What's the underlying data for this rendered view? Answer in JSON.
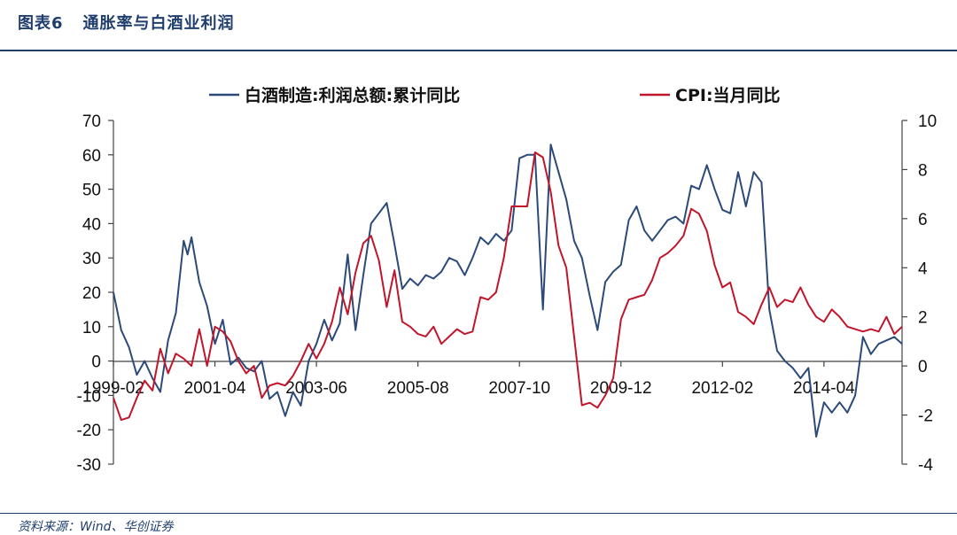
{
  "header": {
    "figure_no": "图表6",
    "title": "通胀率与白酒业利润"
  },
  "source": "资料来源：Wind、华创证券",
  "colors": {
    "accent": "#1f3e6e",
    "series_liquor": "#2b4a7a",
    "series_cpi": "#c0152a"
  },
  "chart_data": {
    "type": "line",
    "x_tick_labels": [
      "1999-02",
      "2001-04",
      "2003-06",
      "2005-08",
      "2007-10",
      "2009-12",
      "2012-02",
      "2014-04"
    ],
    "y_left": {
      "min": -30,
      "max": 70,
      "ticks": [
        -30,
        -20,
        -10,
        0,
        10,
        20,
        30,
        40,
        50,
        60,
        70
      ]
    },
    "y_right": {
      "min": -4,
      "max": 10,
      "ticks": [
        -4,
        -2,
        0,
        2,
        4,
        6,
        8,
        10
      ]
    },
    "legend_position": "top",
    "series": [
      {
        "name": "白酒制造:利润总额:累计同比",
        "axis": "left",
        "points": [
          [
            "1999-02",
            20
          ],
          [
            "1999-04",
            9
          ],
          [
            "1999-06",
            4
          ],
          [
            "1999-08",
            -4
          ],
          [
            "1999-10",
            0
          ],
          [
            "1999-12",
            -5
          ],
          [
            "2000-02",
            -9
          ],
          [
            "2000-04",
            6
          ],
          [
            "2000-06",
            14
          ],
          [
            "2000-08",
            35
          ],
          [
            "2000-09",
            31
          ],
          [
            "2000-10",
            36
          ],
          [
            "2000-12",
            23
          ],
          [
            "2001-02",
            16
          ],
          [
            "2001-04",
            5
          ],
          [
            "2001-06",
            12
          ],
          [
            "2001-08",
            -1
          ],
          [
            "2001-10",
            1
          ],
          [
            "2001-12",
            -2
          ],
          [
            "2002-02",
            -3
          ],
          [
            "2002-04",
            0
          ],
          [
            "2002-06",
            -11
          ],
          [
            "2002-08",
            -9
          ],
          [
            "2002-10",
            -16
          ],
          [
            "2002-12",
            -9
          ],
          [
            "2003-02",
            -13
          ],
          [
            "2003-04",
            0
          ],
          [
            "2003-06",
            5
          ],
          [
            "2003-08",
            12
          ],
          [
            "2003-10",
            6
          ],
          [
            "2003-12",
            11
          ],
          [
            "2004-02",
            31
          ],
          [
            "2004-04",
            9
          ],
          [
            "2004-06",
            25
          ],
          [
            "2004-08",
            40
          ],
          [
            "2004-10",
            43
          ],
          [
            "2004-12",
            46
          ],
          [
            "2005-02",
            34
          ],
          [
            "2005-04",
            21
          ],
          [
            "2005-06",
            24
          ],
          [
            "2005-08",
            22
          ],
          [
            "2005-10",
            25
          ],
          [
            "2005-12",
            24
          ],
          [
            "2006-02",
            26
          ],
          [
            "2006-04",
            30
          ],
          [
            "2006-06",
            29
          ],
          [
            "2006-08",
            25
          ],
          [
            "2006-10",
            30
          ],
          [
            "2006-12",
            36
          ],
          [
            "2007-02",
            34
          ],
          [
            "2007-04",
            37
          ],
          [
            "2007-06",
            35
          ],
          [
            "2007-08",
            38
          ],
          [
            "2007-10",
            59
          ],
          [
            "2007-12",
            60
          ],
          [
            "2008-02",
            60
          ],
          [
            "2008-04",
            15
          ],
          [
            "2008-06",
            63
          ],
          [
            "2008-08",
            55
          ],
          [
            "2008-10",
            47
          ],
          [
            "2008-12",
            35
          ],
          [
            "2009-02",
            30
          ],
          [
            "2009-04",
            19
          ],
          [
            "2009-06",
            9
          ],
          [
            "2009-08",
            23
          ],
          [
            "2009-10",
            26
          ],
          [
            "2009-12",
            28
          ],
          [
            "2010-02",
            41
          ],
          [
            "2010-04",
            45
          ],
          [
            "2010-06",
            38
          ],
          [
            "2010-08",
            35
          ],
          [
            "2010-10",
            38
          ],
          [
            "2010-12",
            41
          ],
          [
            "2011-02",
            42
          ],
          [
            "2011-04",
            40
          ],
          [
            "2011-06",
            51
          ],
          [
            "2011-08",
            50
          ],
          [
            "2011-10",
            57
          ],
          [
            "2011-12",
            50
          ],
          [
            "2012-02",
            44
          ],
          [
            "2012-04",
            43
          ],
          [
            "2012-06",
            55
          ],
          [
            "2012-08",
            45
          ],
          [
            "2012-10",
            55
          ],
          [
            "2012-12",
            52
          ],
          [
            "2013-02",
            15
          ],
          [
            "2013-04",
            3
          ],
          [
            "2013-06",
            0
          ],
          [
            "2013-08",
            -2
          ],
          [
            "2013-10",
            -5
          ],
          [
            "2013-12",
            -2
          ],
          [
            "2014-02",
            -22
          ],
          [
            "2014-04",
            -12
          ],
          [
            "2014-06",
            -15
          ],
          [
            "2014-08",
            -12
          ],
          [
            "2014-10",
            -15
          ],
          [
            "2014-12",
            -10
          ],
          [
            "2015-02",
            7
          ],
          [
            "2015-04",
            2
          ],
          [
            "2015-06",
            5
          ],
          [
            "2015-08",
            6
          ],
          [
            "2015-10",
            7
          ],
          [
            "2015-12",
            5
          ]
        ]
      },
      {
        "name": "CPI:当月同比",
        "axis": "right",
        "points": [
          [
            "1999-02",
            -1.3
          ],
          [
            "1999-04",
            -2.2
          ],
          [
            "1999-06",
            -2.1
          ],
          [
            "1999-08",
            -1.3
          ],
          [
            "1999-10",
            -0.6
          ],
          [
            "1999-12",
            -1.0
          ],
          [
            "2000-02",
            0.7
          ],
          [
            "2000-04",
            -0.3
          ],
          [
            "2000-06",
            0.5
          ],
          [
            "2000-08",
            0.3
          ],
          [
            "2000-10",
            0.0
          ],
          [
            "2000-12",
            1.5
          ],
          [
            "2001-02",
            0.0
          ],
          [
            "2001-04",
            1.6
          ],
          [
            "2001-06",
            1.4
          ],
          [
            "2001-08",
            1.0
          ],
          [
            "2001-10",
            0.2
          ],
          [
            "2001-12",
            -0.3
          ],
          [
            "2002-02",
            0.0
          ],
          [
            "2002-04",
            -1.3
          ],
          [
            "2002-06",
            -0.8
          ],
          [
            "2002-08",
            -0.7
          ],
          [
            "2002-10",
            -0.8
          ],
          [
            "2002-12",
            -0.4
          ],
          [
            "2003-02",
            0.2
          ],
          [
            "2003-04",
            0.9
          ],
          [
            "2003-06",
            0.3
          ],
          [
            "2003-08",
            0.9
          ],
          [
            "2003-10",
            1.8
          ],
          [
            "2003-12",
            3.2
          ],
          [
            "2004-02",
            2.1
          ],
          [
            "2004-04",
            3.8
          ],
          [
            "2004-06",
            5.0
          ],
          [
            "2004-08",
            5.3
          ],
          [
            "2004-10",
            4.3
          ],
          [
            "2004-12",
            2.4
          ],
          [
            "2005-02",
            3.9
          ],
          [
            "2005-04",
            1.8
          ],
          [
            "2005-06",
            1.6
          ],
          [
            "2005-08",
            1.3
          ],
          [
            "2005-10",
            1.2
          ],
          [
            "2005-12",
            1.6
          ],
          [
            "2006-02",
            0.9
          ],
          [
            "2006-04",
            1.2
          ],
          [
            "2006-06",
            1.5
          ],
          [
            "2006-08",
            1.3
          ],
          [
            "2006-10",
            1.4
          ],
          [
            "2006-12",
            2.8
          ],
          [
            "2007-02",
            2.7
          ],
          [
            "2007-04",
            3.0
          ],
          [
            "2007-06",
            4.4
          ],
          [
            "2007-08",
            6.5
          ],
          [
            "2007-10",
            6.5
          ],
          [
            "2007-12",
            6.5
          ],
          [
            "2008-02",
            8.7
          ],
          [
            "2008-04",
            8.5
          ],
          [
            "2008-06",
            7.1
          ],
          [
            "2008-08",
            4.9
          ],
          [
            "2008-10",
            4.0
          ],
          [
            "2008-12",
            1.2
          ],
          [
            "2009-02",
            -1.6
          ],
          [
            "2009-04",
            -1.5
          ],
          [
            "2009-06",
            -1.7
          ],
          [
            "2009-08",
            -1.2
          ],
          [
            "2009-10",
            -0.5
          ],
          [
            "2009-12",
            1.9
          ],
          [
            "2010-02",
            2.7
          ],
          [
            "2010-04",
            2.8
          ],
          [
            "2010-06",
            2.9
          ],
          [
            "2010-08",
            3.5
          ],
          [
            "2010-10",
            4.4
          ],
          [
            "2010-12",
            4.6
          ],
          [
            "2011-02",
            4.9
          ],
          [
            "2011-04",
            5.3
          ],
          [
            "2011-06",
            6.4
          ],
          [
            "2011-08",
            6.2
          ],
          [
            "2011-10",
            5.5
          ],
          [
            "2011-12",
            4.1
          ],
          [
            "2012-02",
            3.2
          ],
          [
            "2012-04",
            3.4
          ],
          [
            "2012-06",
            2.2
          ],
          [
            "2012-08",
            2.0
          ],
          [
            "2012-10",
            1.7
          ],
          [
            "2012-12",
            2.5
          ],
          [
            "2013-02",
            3.2
          ],
          [
            "2013-04",
            2.4
          ],
          [
            "2013-06",
            2.7
          ],
          [
            "2013-08",
            2.6
          ],
          [
            "2013-10",
            3.2
          ],
          [
            "2013-12",
            2.5
          ],
          [
            "2014-02",
            2.0
          ],
          [
            "2014-04",
            1.8
          ],
          [
            "2014-06",
            2.3
          ],
          [
            "2014-08",
            2.0
          ],
          [
            "2014-10",
            1.6
          ],
          [
            "2014-12",
            1.5
          ],
          [
            "2015-02",
            1.4
          ],
          [
            "2015-04",
            1.5
          ],
          [
            "2015-06",
            1.4
          ],
          [
            "2015-08",
            2.0
          ],
          [
            "2015-10",
            1.3
          ],
          [
            "2015-12",
            1.6
          ]
        ]
      }
    ]
  }
}
